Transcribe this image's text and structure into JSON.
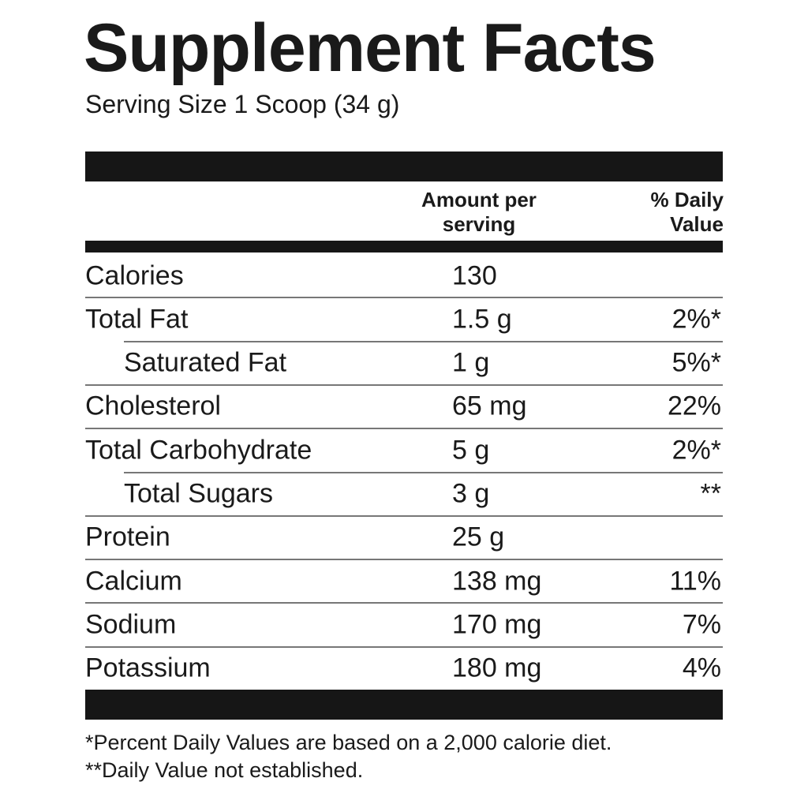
{
  "header": {
    "title": "Supplement Facts",
    "serving": "Serving Size 1 Scoop (34 g)"
  },
  "table": {
    "columns": [
      "Amount per serving",
      "% Daily Value"
    ],
    "rows": [
      [
        "Calories",
        "130"
      ],
      [
        "Total Fat",
        "1.5 g",
        "2%*"
      ],
      [
        "Saturated Fat",
        "1 g",
        "5%*"
      ],
      [
        "Cholesterol",
        "65 mg",
        "22%"
      ],
      [
        "Total Carbohydrate",
        "5 g",
        "2%*"
      ],
      [
        "Total Sugars",
        "3 g",
        "**"
      ],
      [
        "Protein",
        "25 g"
      ],
      [
        "Calcium",
        "138 mg",
        "11%"
      ],
      [
        "Sodium",
        "170 mg",
        "7%"
      ],
      [
        "Potassium",
        "180 mg",
        "4%"
      ]
    ]
  },
  "footnotes": [
    "*Percent Daily Values are based on a 2,000 calorie diet.",
    "**Daily Value not established."
  ]
}
